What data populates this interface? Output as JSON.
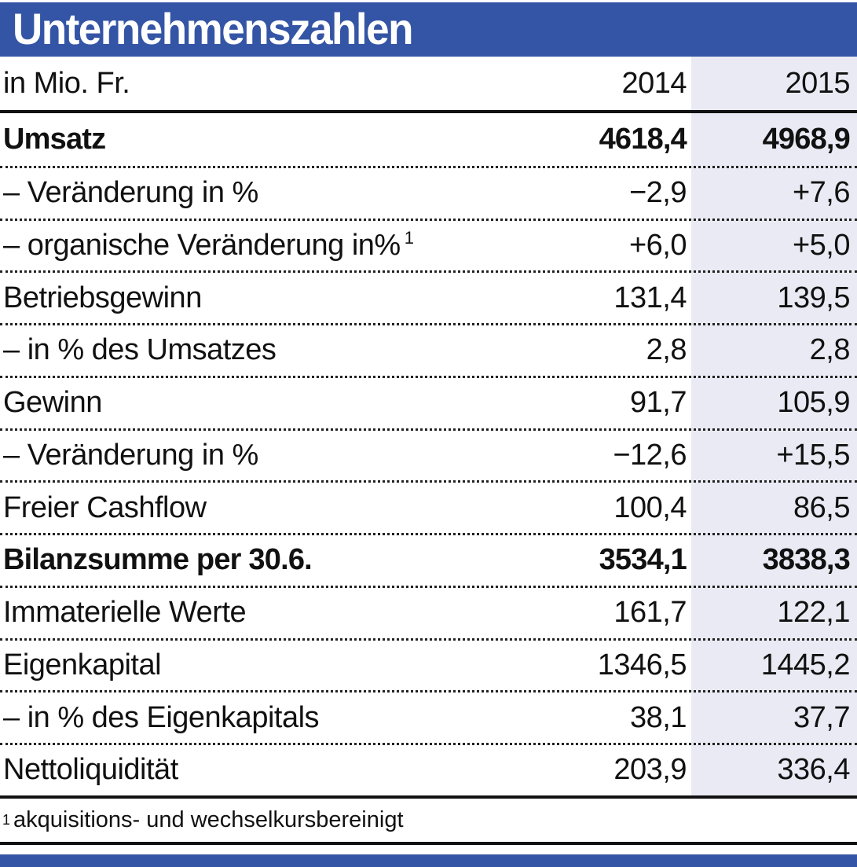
{
  "colors": {
    "header_bg": "#3455A5",
    "highlight_column_bg": "#E9EAF3",
    "text": "#111111",
    "title_text": "#ffffff"
  },
  "chart_data": {
    "type": "table",
    "title": "Unternehmenszahlen",
    "unit": "in Mio. Fr.",
    "columns": [
      "2014",
      "2015"
    ],
    "highlighted_column": "2015",
    "rows": [
      {
        "label": "Umsatz",
        "bold": true,
        "v2014": "4618,4",
        "v2015": "4968,9"
      },
      {
        "label": "– Veränderung in %",
        "bold": false,
        "v2014": "−2,9",
        "v2015": "+7,6"
      },
      {
        "label": "– organische Veränderung in%",
        "sup": "1",
        "bold": false,
        "v2014": "+6,0",
        "v2015": "+5,0"
      },
      {
        "label": "Betriebsgewinn",
        "bold": false,
        "v2014": "131,4",
        "v2015": "139,5"
      },
      {
        "label": "– in % des Umsatzes",
        "bold": false,
        "v2014": "2,8",
        "v2015": "2,8"
      },
      {
        "label": "Gewinn",
        "bold": false,
        "v2014": "91,7",
        "v2015": "105,9"
      },
      {
        "label": "– Veränderung in %",
        "bold": false,
        "v2014": "−12,6",
        "v2015": "+15,5"
      },
      {
        "label": "Freier Cashflow",
        "bold": false,
        "v2014": "100,4",
        "v2015": "86,5"
      },
      {
        "label": "Bilanzsumme per 30.6.",
        "bold": true,
        "v2014": "3534,1",
        "v2015": "3838,3"
      },
      {
        "label": "Immaterielle Werte",
        "bold": false,
        "v2014": "161,7",
        "v2015": "122,1"
      },
      {
        "label": "Eigenkapital",
        "bold": false,
        "v2014": "1346,5",
        "v2015": "1445,2"
      },
      {
        "label": "– in % des Eigenkapitals",
        "bold": false,
        "v2014": "38,1",
        "v2015": "37,7"
      },
      {
        "label": "Nettoliquidität",
        "bold": false,
        "v2014": "203,9",
        "v2015": "336,4"
      }
    ],
    "footnote_marker": "1",
    "footnote": "akquisitions- und wechselkursbereinigt"
  }
}
